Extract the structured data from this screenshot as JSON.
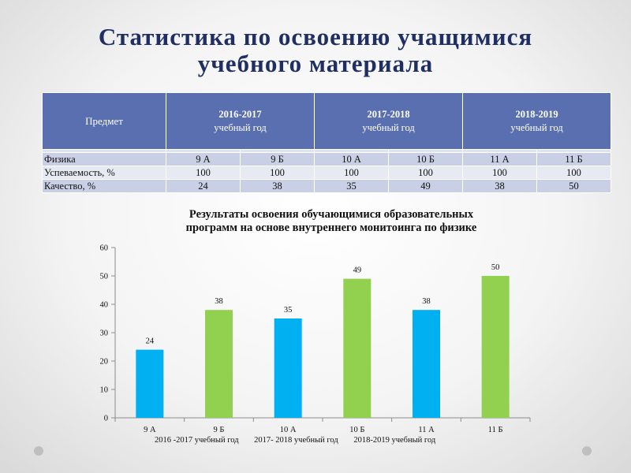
{
  "title": {
    "line1": "Статистика по освоению учащимися",
    "line2": "учебного материала"
  },
  "table": {
    "subject_header": "Предмет",
    "years": [
      {
        "year": "2016-2017",
        "unit": "учебный год"
      },
      {
        "year": "2017-2018",
        "unit": "учебный год"
      },
      {
        "year": "2018-2019",
        "unit": "учебный год"
      }
    ],
    "rows": [
      {
        "label": "Физика",
        "cells": [
          "9 А",
          "9 Б",
          "10 А",
          "10 Б",
          "11 А",
          "11 Б"
        ]
      },
      {
        "label": "Успеваемость, %",
        "cells": [
          "100",
          "100",
          "100",
          "100",
          "100",
          "100"
        ]
      },
      {
        "label": "Качество, %",
        "cells": [
          "24",
          "38",
          "35",
          "49",
          "38",
          "50"
        ]
      }
    ]
  },
  "chart_data": {
    "type": "bar",
    "title": "Результаты освоения обучающимися образовательных программ на основе внутреннего монитоинга по физике",
    "title_lines": [
      "Результаты освоения обучающимися образовательных",
      "программ на основе внутреннего монитоинга по физике"
    ],
    "categories": [
      "9 А",
      "9 Б",
      "10 А",
      "10 Б",
      "11 А",
      "11 Б"
    ],
    "values": [
      24,
      38,
      35,
      49,
      38,
      50
    ],
    "bar_colors": [
      "#00b0f0",
      "#92d050",
      "#00b0f0",
      "#92d050",
      "#00b0f0",
      "#92d050"
    ],
    "ylim": [
      0,
      60
    ],
    "yticks": [
      0,
      10,
      20,
      30,
      40,
      50,
      60
    ],
    "grid": false,
    "data_labels": true,
    "group_labels": [
      "2016 -2017 учебный год",
      "2017- 2018 учебный год",
      "2018-2019 учебный год"
    ]
  },
  "colors": {
    "title": "#1f2f63",
    "table_header": "#5a6fb0",
    "row_dark": "#c9d0e6",
    "row_light": "#e7eaf3"
  }
}
